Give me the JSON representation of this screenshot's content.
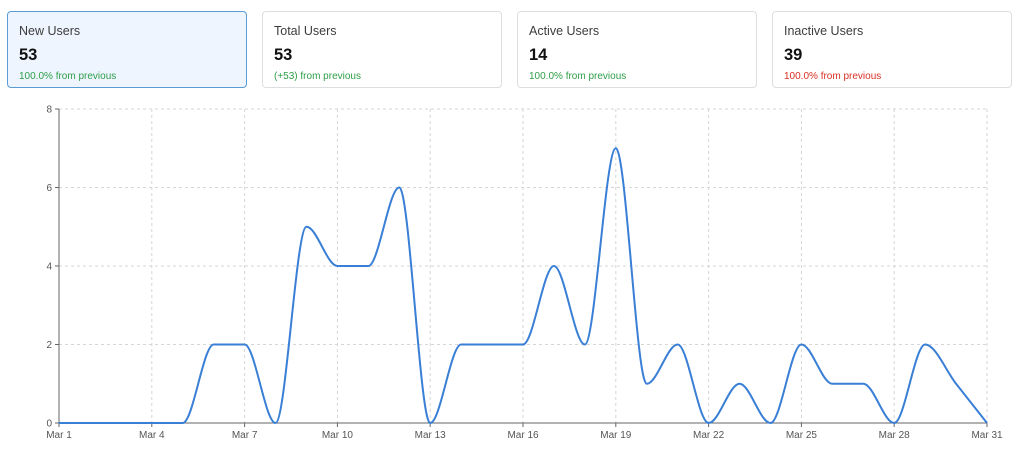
{
  "cards": [
    {
      "title": "New Users",
      "value": "53",
      "change": "100.0% from previous",
      "change_color": "#2e9e48",
      "selected": true
    },
    {
      "title": "Total Users",
      "value": "53",
      "change": "(+53) from previous",
      "change_color": "#2e9e48",
      "selected": false
    },
    {
      "title": "Active Users",
      "value": "14",
      "change": "100.0% from previous",
      "change_color": "#2e9e48",
      "selected": false
    },
    {
      "title": "Inactive Users",
      "value": "39",
      "change": "100.0% from previous",
      "change_color": "#d93025",
      "selected": false
    }
  ],
  "chart_data": {
    "type": "line",
    "title": "",
    "xlabel": "",
    "ylabel": "",
    "x": [
      "Mar 1",
      "Mar 2",
      "Mar 3",
      "Mar 4",
      "Mar 5",
      "Mar 6",
      "Mar 7",
      "Mar 8",
      "Mar 9",
      "Mar 10",
      "Mar 11",
      "Mar 12",
      "Mar 13",
      "Mar 14",
      "Mar 15",
      "Mar 16",
      "Mar 17",
      "Mar 18",
      "Mar 19",
      "Mar 20",
      "Mar 21",
      "Mar 22",
      "Mar 23",
      "Mar 24",
      "Mar 25",
      "Mar 26",
      "Mar 27",
      "Mar 28",
      "Mar 29",
      "Mar 30",
      "Mar 31"
    ],
    "x_tick_labels": [
      "Mar 1",
      "Mar 4",
      "Mar 7",
      "Mar 10",
      "Mar 13",
      "Mar 16",
      "Mar 19",
      "Mar 22",
      "Mar 25",
      "Mar 28",
      "Mar 31"
    ],
    "y_ticks": [
      0,
      2,
      4,
      6,
      8
    ],
    "ylim": [
      0,
      8
    ],
    "grid": true,
    "line_color": "#3a7fd6",
    "series": [
      {
        "values": [
          0,
          0,
          0,
          0,
          0,
          2,
          2,
          0,
          5,
          4,
          4,
          6,
          0,
          2,
          2,
          2,
          4,
          2,
          7,
          1,
          2,
          0,
          1,
          0,
          2,
          1,
          1,
          0,
          2,
          1,
          0
        ]
      }
    ]
  }
}
